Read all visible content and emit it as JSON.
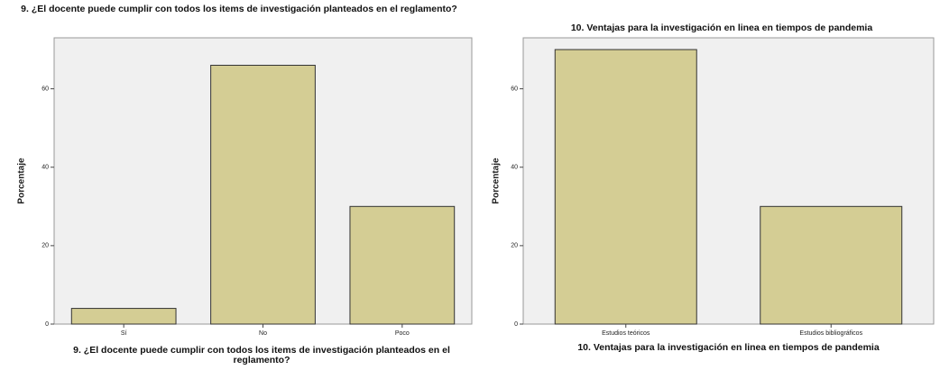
{
  "chart_data": [
    {
      "type": "bar",
      "title": "9. ¿El docente puede cumplir con todos los items de investigación planteados en el reglamento?",
      "x_label": "9. ¿El docente puede cumplir con todos los items de investigación planteados en el reglamento?",
      "y_label": "Porcentaje",
      "categories": [
        "Sí",
        "No",
        "Poco"
      ],
      "values": [
        4,
        66,
        30
      ],
      "color": "#d4cd94",
      "ylim": [
        0,
        73
      ],
      "yticks": [
        0,
        20,
        40,
        60
      ]
    },
    {
      "type": "bar",
      "title": "10. Ventajas para la investigación en linea en tiempos de pandemia",
      "x_label": "10. Ventajas para la investigación en linea en tiempos de pandemia",
      "y_label": "Porcentaje",
      "categories": [
        "Estudios teóricos",
        "Estudios bibliográficos"
      ],
      "values": [
        70,
        30
      ],
      "color": "#d4cd94",
      "ylim": [
        0,
        73
      ],
      "yticks": [
        0,
        20,
        40,
        60
      ]
    }
  ]
}
